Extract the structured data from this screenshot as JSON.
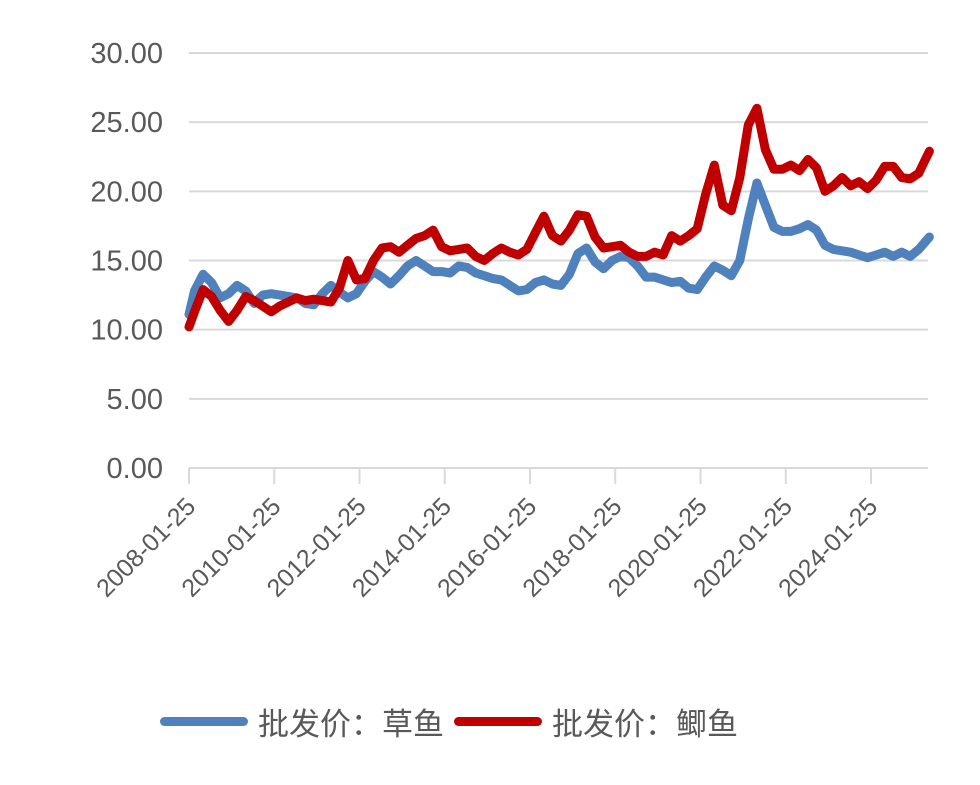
{
  "chart_data": {
    "type": "line",
    "title": "",
    "xlabel": "",
    "ylabel": "",
    "ylim": [
      0,
      30
    ],
    "yticks": [
      "0.00",
      "5.00",
      "10.00",
      "15.00",
      "20.00",
      "25.00",
      "30.00"
    ],
    "xtick_labels": [
      "2008-01-25",
      "2010-01-25",
      "2012-01-25",
      "2014-01-25",
      "2016-01-25",
      "2018-01-25",
      "2020-01-25",
      "2022-01-25",
      "2024-01-25"
    ],
    "x_range_years": [
      2008.07,
      2025.45
    ],
    "grid": "horizontal",
    "legend_position": "bottom",
    "x": [
      2008.07,
      2008.2,
      2008.4,
      2008.6,
      2008.8,
      2009.0,
      2009.2,
      2009.4,
      2009.6,
      2009.8,
      2010.0,
      2010.2,
      2010.4,
      2010.6,
      2010.8,
      2011.0,
      2011.2,
      2011.4,
      2011.6,
      2011.8,
      2012.0,
      2012.2,
      2012.4,
      2012.6,
      2012.8,
      2013.0,
      2013.2,
      2013.4,
      2013.6,
      2013.8,
      2014.0,
      2014.2,
      2014.4,
      2014.6,
      2014.8,
      2015.0,
      2015.2,
      2015.4,
      2015.6,
      2015.8,
      2016.0,
      2016.2,
      2016.4,
      2016.6,
      2016.8,
      2017.0,
      2017.2,
      2017.4,
      2017.6,
      2017.8,
      2018.0,
      2018.2,
      2018.4,
      2018.6,
      2018.8,
      2019.0,
      2019.2,
      2019.4,
      2019.6,
      2019.8,
      2020.0,
      2020.2,
      2020.4,
      2020.6,
      2020.8,
      2021.0,
      2021.2,
      2021.4,
      2021.6,
      2021.8,
      2022.0,
      2022.2,
      2022.4,
      2022.6,
      2022.8,
      2023.0,
      2023.2,
      2023.4,
      2023.6,
      2023.8,
      2024.0,
      2024.2,
      2024.4,
      2024.6,
      2024.8,
      2025.0,
      2025.2,
      2025.45
    ],
    "series": [
      {
        "name": "批发价：草鱼",
        "color": "#4F81BD",
        "values": [
          11.1,
          12.8,
          14.0,
          13.4,
          12.3,
          12.6,
          13.2,
          12.8,
          11.9,
          12.5,
          12.6,
          12.5,
          12.4,
          12.3,
          11.9,
          11.8,
          12.6,
          13.2,
          12.7,
          12.3,
          12.6,
          13.5,
          14.2,
          13.8,
          13.3,
          13.9,
          14.6,
          15.0,
          14.6,
          14.2,
          14.2,
          14.1,
          14.6,
          14.5,
          14.1,
          13.9,
          13.7,
          13.6,
          13.2,
          12.8,
          12.9,
          13.4,
          13.6,
          13.3,
          13.2,
          14.0,
          15.5,
          15.9,
          14.9,
          14.4,
          15.0,
          15.3,
          15.2,
          14.6,
          13.8,
          13.8,
          13.6,
          13.4,
          13.5,
          13.0,
          12.9,
          13.8,
          14.6,
          14.3,
          13.9,
          15.0,
          18.0,
          20.6,
          19.0,
          17.4,
          17.1,
          17.1,
          17.3,
          17.6,
          17.2,
          16.1,
          15.8,
          15.7,
          15.6,
          15.4,
          15.2,
          15.4,
          15.6,
          15.3,
          15.6,
          15.3,
          15.8,
          16.7
        ]
      },
      {
        "name": "批发价：鲫鱼",
        "color": "#C00000",
        "values": [
          10.2,
          11.3,
          12.9,
          12.4,
          11.4,
          10.6,
          11.4,
          12.4,
          12.1,
          11.7,
          11.3,
          11.7,
          12.0,
          12.3,
          12.1,
          12.2,
          12.1,
          12.0,
          13.0,
          15.0,
          13.6,
          13.7,
          15.0,
          15.9,
          16.0,
          15.6,
          16.1,
          16.6,
          16.8,
          17.2,
          16.0,
          15.7,
          15.8,
          15.9,
          15.3,
          15.0,
          15.5,
          15.9,
          15.6,
          15.4,
          15.8,
          17.0,
          18.2,
          16.8,
          16.4,
          17.2,
          18.3,
          18.2,
          16.7,
          15.9,
          16.0,
          16.1,
          15.6,
          15.3,
          15.3,
          15.6,
          15.4,
          16.8,
          16.4,
          16.8,
          17.3,
          19.8,
          21.9,
          19.0,
          18.6,
          21.0,
          24.8,
          26.0,
          23.0,
          21.6,
          21.6,
          21.9,
          21.5,
          22.3,
          21.7,
          20.0,
          20.4,
          21.0,
          20.4,
          20.7,
          20.2,
          20.8,
          21.8,
          21.8,
          21.0,
          20.9,
          21.3,
          22.9
        ]
      }
    ]
  },
  "legend": {
    "items": [
      {
        "label": "批发价：草鱼",
        "color": "#4F81BD"
      },
      {
        "label": "批发价：鲫鱼",
        "color": "#C00000"
      }
    ]
  },
  "colors": {
    "grid": "#D9D9D9",
    "axis_text": "#595959",
    "background": "#FFFFFF"
  }
}
